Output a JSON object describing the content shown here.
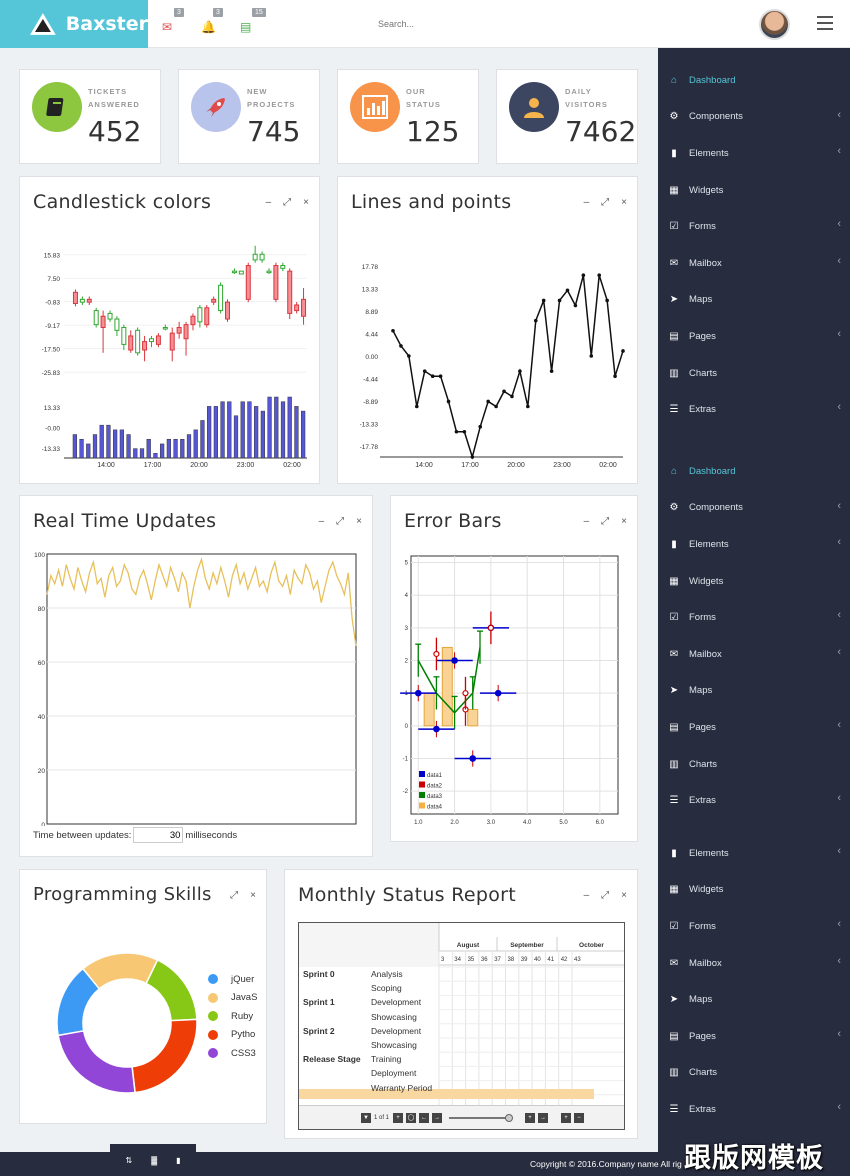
{
  "brand": {
    "name": "Baxster"
  },
  "header": {
    "notifications": [
      {
        "icon": "envelope-icon",
        "count": "3",
        "color": "#e14b4b"
      },
      {
        "icon": "bell-icon",
        "count": "3",
        "color": "#55c6d8"
      },
      {
        "icon": "tasks-icon",
        "count": "15",
        "color": "#4caf50"
      }
    ],
    "search_placeholder": "Search..."
  },
  "stats": [
    {
      "label_line1": "TICKETS",
      "label_line2": "ANSWERED",
      "value": "452",
      "color": "#8dc63f",
      "icon": "book-icon"
    },
    {
      "label_line1": "NEW",
      "label_line2": "PROJECTS",
      "value": "745",
      "color": "#b8c4ec",
      "icon": "rocket-icon"
    },
    {
      "label_line1": "OUR",
      "label_line2": "STATUS",
      "value": "125",
      "color": "#f7944a",
      "icon": "bar-chart-icon"
    },
    {
      "label_line1": "DAILY",
      "label_line2": "VISITORS",
      "value": "7462",
      "color": "#3d4660",
      "icon": "user-icon"
    }
  ],
  "panels": {
    "candlestick": {
      "title": "Candlestick colors"
    },
    "lines": {
      "title": "Lines and points"
    },
    "realtime": {
      "title": "Real Time Updates",
      "footer_label": "Time between updates:",
      "interval": "30",
      "unit": "milliseconds"
    },
    "errorbars": {
      "title": "Error Bars"
    },
    "skills": {
      "title": "Programming Skills"
    },
    "monthly": {
      "title": "Monthly Status Report"
    }
  },
  "tools": {
    "minimize": "–",
    "expand": "⤢",
    "close": "×"
  },
  "sidebar": {
    "group1": [
      {
        "label": "Dashboard",
        "icon": "home-icon",
        "active": true,
        "chevron": false
      },
      {
        "label": "Components",
        "icon": "cogs-icon",
        "active": false,
        "chevron": true
      },
      {
        "label": "Elements",
        "icon": "book-icon",
        "active": false,
        "chevron": true
      },
      {
        "label": "Widgets",
        "icon": "th-large-icon",
        "active": false,
        "chevron": false
      },
      {
        "label": "Forms",
        "icon": "check-square-icon",
        "active": false,
        "chevron": true
      },
      {
        "label": "Mailbox",
        "icon": "envelope-icon",
        "active": false,
        "chevron": true
      },
      {
        "label": "Maps",
        "icon": "location-arrow-icon",
        "active": false,
        "chevron": false
      },
      {
        "label": "Pages",
        "icon": "file-icon",
        "active": false,
        "chevron": true
      },
      {
        "label": "Charts",
        "icon": "bar-chart-icon",
        "active": false,
        "chevron": false
      },
      {
        "label": "Extras",
        "icon": "list-icon",
        "active": false,
        "chevron": true
      }
    ],
    "group2": [
      {
        "label": "Dashboard",
        "icon": "home-icon",
        "active": true,
        "chevron": false
      },
      {
        "label": "Components",
        "icon": "cogs-icon",
        "active": false,
        "chevron": true
      },
      {
        "label": "Elements",
        "icon": "book-icon",
        "active": false,
        "chevron": true
      },
      {
        "label": "Widgets",
        "icon": "th-large-icon",
        "active": false,
        "chevron": false
      },
      {
        "label": "Forms",
        "icon": "check-square-icon",
        "active": false,
        "chevron": true
      },
      {
        "label": "Mailbox",
        "icon": "envelope-icon",
        "active": false,
        "chevron": true
      },
      {
        "label": "Maps",
        "icon": "location-arrow-icon",
        "active": false,
        "chevron": false
      },
      {
        "label": "Pages",
        "icon": "file-icon",
        "active": false,
        "chevron": true
      },
      {
        "label": "Charts",
        "icon": "bar-chart-icon",
        "active": false,
        "chevron": false
      },
      {
        "label": "Extras",
        "icon": "list-icon",
        "active": false,
        "chevron": true
      }
    ],
    "group3": [
      {
        "label": "Elements",
        "icon": "book-icon",
        "active": false,
        "chevron": true
      },
      {
        "label": "Widgets",
        "icon": "th-large-icon",
        "active": false,
        "chevron": false
      },
      {
        "label": "Forms",
        "icon": "check-square-icon",
        "active": false,
        "chevron": true
      },
      {
        "label": "Mailbox",
        "icon": "envelope-icon",
        "active": false,
        "chevron": true
      },
      {
        "label": "Maps",
        "icon": "location-arrow-icon",
        "active": false,
        "chevron": false
      },
      {
        "label": "Pages",
        "icon": "file-icon",
        "active": false,
        "chevron": true
      },
      {
        "label": "Charts",
        "icon": "bar-chart-icon",
        "active": false,
        "chevron": false
      },
      {
        "label": "Extras",
        "icon": "list-icon",
        "active": false,
        "chevron": true
      }
    ]
  },
  "gantt": {
    "months": [
      "August",
      "September",
      "October"
    ],
    "weeks": [
      "3",
      "34",
      "35",
      "36",
      "37",
      "38",
      "39",
      "40",
      "41",
      "42",
      "43"
    ],
    "rows": [
      {
        "sprint": "Sprint 0",
        "activity": "Analysis"
      },
      {
        "sprint": "",
        "activity": "Scoping"
      },
      {
        "sprint": "Sprint 1",
        "activity": "Development"
      },
      {
        "sprint": "",
        "activity": "Showcasing"
      },
      {
        "sprint": "Sprint 2",
        "activity": "Development"
      },
      {
        "sprint": "",
        "activity": "Showcasing"
      },
      {
        "sprint": "Release Stage",
        "activity": "Training"
      },
      {
        "sprint": "",
        "activity": "Deployment"
      },
      {
        "sprint": "",
        "activity": "Warranty Period"
      }
    ],
    "page_info": "1 of 1"
  },
  "footer": {
    "copyright": "Copyright © 2016.Company name All rig"
  },
  "watermark": "跟版网模板",
  "chart_data": [
    {
      "id": "candlestick",
      "type": "candlestick",
      "title": "Candlestick colors",
      "xticks": [
        "14:00",
        "17:00",
        "20:00",
        "23:00",
        "02:00"
      ],
      "yticks_price": [
        "15.83",
        "7.50",
        "-0.83",
        "-9.17",
        "-17.50",
        "-25.83"
      ],
      "yticks_volume": [
        "13.33",
        "-0.00",
        "-13.33"
      ],
      "ylim_price": [
        -29,
        20
      ],
      "candles": [
        [
          2.5,
          -1.5,
          3.5,
          -2.5
        ],
        [
          -1,
          0,
          1,
          -2
        ],
        [
          0,
          -1,
          1,
          -2
        ],
        [
          -9,
          -4,
          -3,
          -10
        ],
        [
          -6,
          -10,
          -4,
          -19
        ],
        [
          -7,
          -5,
          -4,
          -8
        ],
        [
          -11,
          -7,
          -6,
          -13
        ],
        [
          -16,
          -10,
          -9,
          -18
        ],
        [
          -13,
          -18,
          -11,
          -19
        ],
        [
          -19,
          -11,
          -10,
          -20
        ],
        [
          -15,
          -18,
          -13,
          -22
        ],
        [
          -15,
          -14,
          -13,
          -17
        ],
        [
          -13,
          -16,
          -12,
          -17
        ],
        [
          -10,
          -10,
          -9,
          -11
        ],
        [
          -12,
          -18,
          -10,
          -22
        ],
        [
          -10,
          -12,
          -8,
          -14
        ],
        [
          -9,
          -14,
          -8,
          -20
        ],
        [
          -6,
          -9,
          -5,
          -11
        ],
        [
          -8,
          -3,
          -2,
          -10
        ],
        [
          -3,
          -9,
          -2,
          -10
        ],
        [
          0,
          -1,
          1,
          -2
        ],
        [
          -4,
          5,
          6,
          -5
        ],
        [
          -1,
          -7,
          0,
          -8
        ],
        [
          10,
          10,
          11,
          9
        ],
        [
          9,
          10,
          10,
          9
        ],
        [
          12,
          0,
          13,
          -1
        ],
        [
          14,
          16,
          19,
          13
        ],
        [
          14,
          16,
          17,
          13
        ],
        [
          10,
          10,
          11,
          9
        ],
        [
          12,
          0,
          13,
          -1
        ],
        [
          11,
          12,
          13,
          10
        ],
        [
          10,
          -5,
          11,
          -7
        ],
        [
          -2,
          -4,
          -1,
          -5
        ],
        [
          0,
          -6,
          4,
          -9
        ]
      ],
      "volume": [
        5,
        4,
        3,
        5,
        7,
        7,
        6,
        6,
        5,
        2,
        2,
        4,
        1,
        3,
        4,
        4,
        4,
        5,
        6,
        8,
        11,
        11,
        12,
        12,
        9,
        12,
        12,
        11,
        10,
        13,
        13,
        12,
        13,
        11,
        10
      ]
    },
    {
      "id": "lines",
      "type": "line",
      "title": "Lines and points",
      "xticks": [
        "14:00",
        "17:00",
        "20:00",
        "23:00",
        "02:00"
      ],
      "yticks": [
        "17.78",
        "13.33",
        "8.89",
        "4.44",
        "0.00",
        "-4.44",
        "-8.89",
        "-13.33",
        "-17.78"
      ],
      "ylim": [
        -20,
        20
      ],
      "values": [
        5,
        2,
        0,
        -10,
        -3,
        -4,
        -4,
        -9,
        -15,
        -15,
        -20,
        -14,
        -9,
        -10,
        -7,
        -8,
        -3,
        -10,
        7,
        11,
        -3,
        11,
        13,
        10,
        16,
        0,
        16,
        11,
        -4,
        1
      ]
    },
    {
      "id": "realtime",
      "type": "line",
      "title": "Real Time Updates",
      "yticks": [
        "0",
        "20",
        "40",
        "60",
        "80",
        "100"
      ],
      "ylim": [
        0,
        100
      ],
      "values": [
        85,
        92,
        89,
        94,
        88,
        96,
        91,
        87,
        95,
        90,
        86,
        93,
        97,
        89,
        91,
        84,
        92,
        95,
        88,
        90,
        96,
        93,
        87,
        85,
        91,
        94,
        89,
        83,
        90,
        96,
        92,
        88,
        95,
        91,
        86,
        93,
        90,
        80,
        88,
        94,
        98,
        91,
        87,
        93,
        89,
        95,
        90,
        84,
        92,
        96,
        89,
        93,
        87,
        91,
        95,
        88,
        90,
        86,
        93,
        97,
        90,
        88,
        92,
        85,
        94,
        91,
        89,
        96,
        93,
        87,
        90,
        82,
        88,
        94,
        97,
        92,
        89,
        85,
        93,
        76,
        66
      ]
    },
    {
      "id": "errorbars",
      "type": "scatter",
      "title": "Error Bars",
      "xticks": [
        "1.0",
        "2.0",
        "3.0",
        "4.0",
        "5.0",
        "6.0"
      ],
      "yticks": [
        "5",
        "4",
        "3",
        "2",
        "1",
        "0",
        "-1",
        "-2"
      ],
      "xlim": [
        0.8,
        6.5
      ],
      "ylim": [
        -2.7,
        5.2
      ],
      "series": [
        {
          "name": "data1",
          "color": "#0000cc",
          "points": [
            [
              1.0,
              1.0
            ],
            [
              1.5,
              -0.1
            ],
            [
              2.0,
              2.0
            ],
            [
              2.5,
              -1.0
            ],
            [
              3.0,
              3.0
            ],
            [
              3.2,
              1.0
            ]
          ]
        },
        {
          "name": "data2",
          "color": "#cc0000",
          "points": [
            [
              1.5,
              2.2
            ],
            [
              2.3,
              0.5
            ],
            [
              2.3,
              1.0
            ],
            [
              3.0,
              3.0
            ]
          ]
        },
        {
          "name": "data3",
          "color": "#008000",
          "points": [
            [
              1.0,
              2.0
            ],
            [
              1.5,
              1.0
            ],
            [
              2.0,
              0.4
            ],
            [
              2.5,
              1.0
            ],
            [
              2.7,
              2.4
            ]
          ]
        },
        {
          "name": "data4",
          "color": "#f5b041",
          "bars": [
            [
              1.3,
              1.0
            ],
            [
              1.8,
              2.4
            ],
            [
              2.5,
              0.5
            ]
          ]
        }
      ]
    },
    {
      "id": "skills",
      "type": "pie",
      "title": "Programming Skills",
      "categories": [
        "jQuer",
        "JavaS",
        "Ruby",
        "Pytho",
        "CSS3"
      ],
      "values": [
        17,
        18,
        17,
        24,
        24
      ],
      "colors": [
        "#3c9af5",
        "#f7c774",
        "#86c815",
        "#ee3d06",
        "#9246d8"
      ]
    }
  ]
}
